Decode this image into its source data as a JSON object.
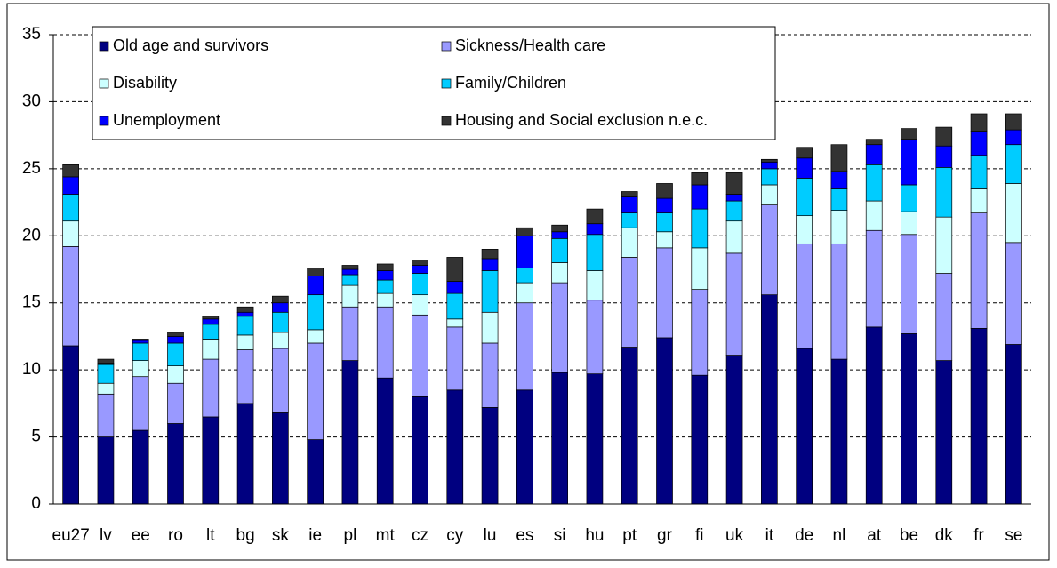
{
  "chart_data": {
    "type": "stacked_bar",
    "categories": [
      "eu27",
      "lv",
      "ee",
      "ro",
      "lt",
      "bg",
      "sk",
      "ie",
      "pl",
      "mt",
      "cz",
      "cy",
      "lu",
      "es",
      "si",
      "hu",
      "pt",
      "gr",
      "fi",
      "uk",
      "it",
      "de",
      "nl",
      "at",
      "be",
      "dk",
      "fr",
      "se"
    ],
    "series": [
      {
        "name": "Old age and survivors",
        "color": "#000080",
        "values": [
          11.8,
          5.0,
          5.5,
          6.0,
          6.5,
          7.5,
          6.8,
          4.8,
          10.7,
          9.4,
          8.0,
          8.5,
          7.2,
          8.5,
          9.8,
          9.7,
          11.7,
          12.4,
          9.6,
          11.1,
          15.6,
          11.6,
          10.8,
          13.2,
          12.7,
          10.7,
          13.1,
          11.9
        ]
      },
      {
        "name": "Sickness/Health care",
        "color": "#9999ff",
        "values": [
          7.4,
          3.2,
          4.0,
          3.0,
          4.3,
          4.0,
          4.8,
          7.2,
          4.0,
          5.3,
          6.1,
          4.7,
          4.8,
          6.5,
          6.7,
          5.5,
          6.7,
          6.7,
          6.4,
          7.6,
          6.7,
          7.8,
          8.6,
          7.2,
          7.4,
          6.5,
          8.6,
          7.6
        ]
      },
      {
        "name": "Disability",
        "color": "#ccffff",
        "values": [
          1.9,
          0.8,
          1.2,
          1.3,
          1.5,
          1.1,
          1.2,
          1.0,
          1.6,
          1.0,
          1.5,
          0.6,
          2.3,
          1.5,
          1.5,
          2.2,
          2.2,
          1.2,
          3.1,
          2.4,
          1.5,
          2.1,
          2.5,
          2.2,
          1.7,
          4.2,
          1.8,
          4.4
        ]
      },
      {
        "name": "Family/Children",
        "color": "#00ccff",
        "values": [
          2.0,
          1.4,
          1.3,
          1.7,
          1.1,
          1.4,
          1.5,
          2.6,
          0.8,
          1.0,
          1.6,
          1.9,
          3.1,
          1.1,
          1.8,
          2.7,
          1.1,
          1.4,
          2.9,
          1.5,
          1.2,
          2.8,
          1.6,
          2.7,
          2.0,
          3.7,
          2.5,
          2.9
        ]
      },
      {
        "name": "Unemployment",
        "color": "#0000ff",
        "values": [
          1.3,
          0.1,
          0.2,
          0.5,
          0.4,
          0.3,
          0.7,
          1.4,
          0.4,
          0.7,
          0.6,
          0.9,
          0.9,
          2.4,
          0.5,
          0.8,
          1.2,
          1.1,
          1.8,
          0.5,
          0.5,
          1.5,
          1.3,
          1.5,
          3.4,
          1.6,
          1.8,
          1.1
        ]
      },
      {
        "name": "Housing and Social exclusion n.e.c.",
        "color": "#333333",
        "values": [
          0.9,
          0.3,
          0.1,
          0.3,
          0.2,
          0.4,
          0.5,
          0.6,
          0.3,
          0.5,
          0.4,
          1.8,
          0.7,
          0.6,
          0.5,
          1.1,
          0.4,
          1.1,
          0.9,
          1.6,
          0.2,
          0.8,
          2.0,
          0.4,
          0.8,
          1.4,
          1.3,
          1.2
        ]
      }
    ],
    "ylim": [
      0,
      35
    ],
    "yticks": [
      0,
      5,
      10,
      15,
      20,
      25,
      30,
      35
    ],
    "grid": true,
    "legend": "top-left"
  }
}
